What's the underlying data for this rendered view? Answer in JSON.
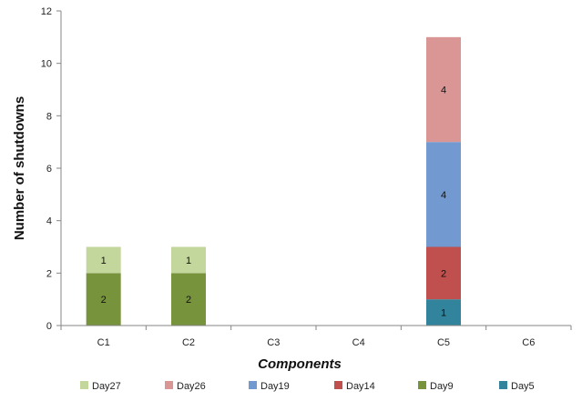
{
  "chart_data": {
    "type": "bar",
    "stacked": true,
    "title": "",
    "xlabel": "Components",
    "ylabel": "Number of shutdowns",
    "categories": [
      "C1",
      "C2",
      "C3",
      "C4",
      "C5",
      "C6"
    ],
    "ylim": [
      0,
      12
    ],
    "yticks": [
      0,
      2,
      4,
      6,
      8,
      10,
      12
    ],
    "grid": false,
    "legend_position": "bottom",
    "series": [
      {
        "name": "Day5",
        "color": "#31849b",
        "values": [
          0,
          0,
          0,
          0,
          1,
          0
        ]
      },
      {
        "name": "Day9",
        "color": "#77933c",
        "values": [
          2,
          2,
          0,
          0,
          0,
          0
        ]
      },
      {
        "name": "Day14",
        "color": "#c0504d",
        "values": [
          0,
          0,
          0,
          0,
          2,
          0
        ]
      },
      {
        "name": "Day19",
        "color": "#7299d0",
        "values": [
          0,
          0,
          0,
          0,
          4,
          0
        ]
      },
      {
        "name": "Day26",
        "color": "#d99694",
        "values": [
          0,
          0,
          0,
          0,
          4,
          0
        ]
      },
      {
        "name": "Day27",
        "color": "#c3d69b",
        "values": [
          1,
          1,
          0,
          0,
          0,
          0
        ]
      }
    ],
    "legend_order": [
      "Day27",
      "Day26",
      "Day19",
      "Day14",
      "Day9",
      "Day5"
    ]
  }
}
